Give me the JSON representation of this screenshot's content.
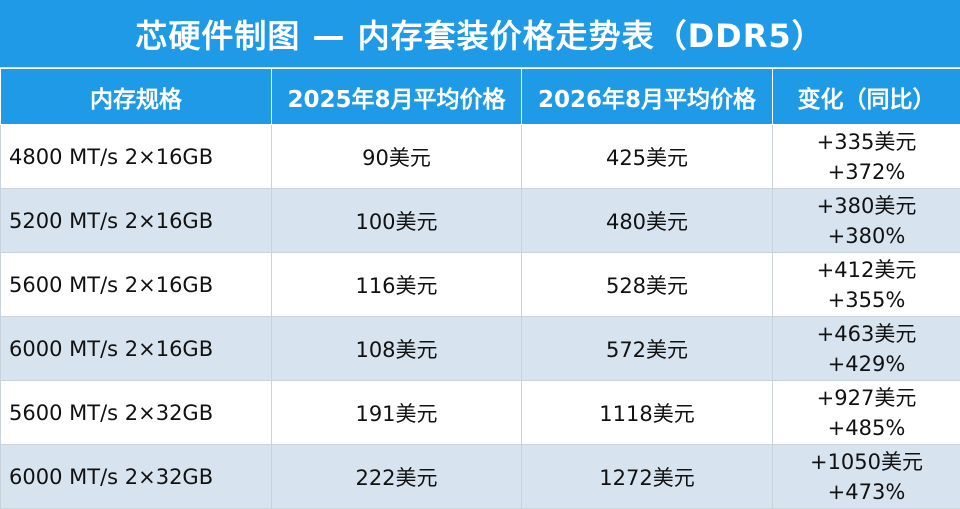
{
  "title": "芯硬件制图 — 内存套装价格走势表（DDR5）",
  "colors": {
    "header_bg": "#1f9ae6",
    "row_alt_bg": "#d7e3ef",
    "header_text": "#ffffff"
  },
  "headers": [
    "内存规格",
    "2025年8月平均价格",
    "2026年8月平均价格",
    "变化（同比）"
  ],
  "rows": [
    {
      "spec": "4800 MT/s 2×16GB",
      "price_2025": "90美元",
      "price_2026": "425美元",
      "change_abs": "+335美元",
      "change_pct": "+372%"
    },
    {
      "spec": "5200 MT/s 2×16GB",
      "price_2025": "100美元",
      "price_2026": "480美元",
      "change_abs": "+380美元",
      "change_pct": "+380%"
    },
    {
      "spec": "5600 MT/s 2×16GB",
      "price_2025": "116美元",
      "price_2026": "528美元",
      "change_abs": "+412美元",
      "change_pct": "+355%"
    },
    {
      "spec": "6000 MT/s 2×16GB",
      "price_2025": "108美元",
      "price_2026": "572美元",
      "change_abs": "+463美元",
      "change_pct": "+429%"
    },
    {
      "spec": "5600 MT/s 2×32GB",
      "price_2025": "191美元",
      "price_2026": "1118美元",
      "change_abs": "+927美元",
      "change_pct": "+485%"
    },
    {
      "spec": "6000 MT/s 2×32GB",
      "price_2025": "222美元",
      "price_2026": "1272美元",
      "change_abs": "+1050美元",
      "change_pct": "+473%"
    }
  ]
}
